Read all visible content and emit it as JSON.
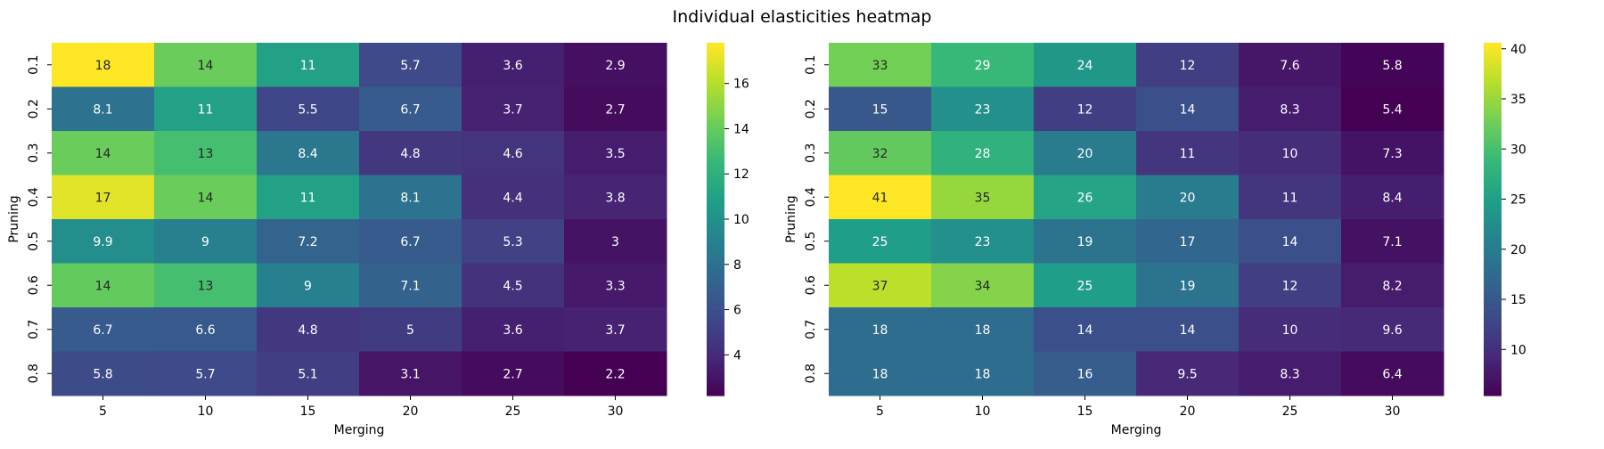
{
  "figure": {
    "title": "Individual elasticities heatmap"
  },
  "chart_data": [
    {
      "type": "heatmap",
      "colormap": "viridis",
      "xlabel": "Merging",
      "ylabel": "Pruning",
      "x": [
        "5",
        "10",
        "15",
        "20",
        "25",
        "30"
      ],
      "y": [
        "0.1",
        "0.2",
        "0.3",
        "0.4",
        "0.5",
        "0.6",
        "0.7",
        "0.8"
      ],
      "values": [
        [
          17.8,
          14.2,
          11.1,
          5.7,
          3.6,
          2.9
        ],
        [
          8.1,
          11.1,
          5.5,
          6.7,
          3.7,
          2.7
        ],
        [
          14.2,
          13.1,
          8.4,
          4.8,
          4.6,
          3.5
        ],
        [
          17.1,
          14.2,
          11.1,
          8.1,
          4.4,
          3.8
        ],
        [
          9.9,
          9.0,
          7.2,
          6.7,
          5.3,
          3.0
        ],
        [
          14.0,
          13.1,
          9.0,
          7.1,
          4.5,
          3.3
        ],
        [
          6.7,
          6.6,
          4.8,
          5.0,
          3.6,
          3.7
        ],
        [
          5.8,
          5.7,
          5.1,
          3.1,
          2.7,
          2.2
        ]
      ],
      "labels": [
        [
          "18",
          "14",
          "11",
          "5.7",
          "3.6",
          "2.9"
        ],
        [
          "8.1",
          "11",
          "5.5",
          "6.7",
          "3.7",
          "2.7"
        ],
        [
          "14",
          "13",
          "8.4",
          "4.8",
          "4.6",
          "3.5"
        ],
        [
          "17",
          "14",
          "11",
          "8.1",
          "4.4",
          "3.8"
        ],
        [
          "9.9",
          "9",
          "7.2",
          "6.7",
          "5.3",
          "3"
        ],
        [
          "14",
          "13",
          "9",
          "7.1",
          "4.5",
          "3.3"
        ],
        [
          "6.7",
          "6.6",
          "4.8",
          "5",
          "3.6",
          "3.7"
        ],
        [
          "5.8",
          "5.7",
          "5.1",
          "3.1",
          "2.7",
          "2.2"
        ]
      ],
      "colorbar": {
        "min": 2.2,
        "max": 17.8,
        "ticks": [
          4,
          6,
          8,
          10,
          12,
          14,
          16
        ]
      }
    },
    {
      "type": "heatmap",
      "colormap": "viridis",
      "xlabel": "Merging",
      "ylabel": "Pruning",
      "x": [
        "5",
        "10",
        "15",
        "20",
        "25",
        "30"
      ],
      "y": [
        "0.1",
        "0.2",
        "0.3",
        "0.4",
        "0.5",
        "0.6",
        "0.7",
        "0.8"
      ],
      "values": [
        [
          33,
          29,
          24,
          12,
          7.6,
          5.8
        ],
        [
          15,
          23,
          12,
          14,
          8.3,
          5.4
        ],
        [
          32,
          28,
          20,
          11,
          10,
          7.3
        ],
        [
          40.6,
          35,
          26,
          20,
          11,
          8.4
        ],
        [
          25,
          23,
          19,
          17,
          14,
          7.1
        ],
        [
          37,
          34,
          25,
          19,
          12,
          8.2
        ],
        [
          18,
          18,
          14,
          14,
          10,
          9.6
        ],
        [
          18,
          18,
          16,
          9.5,
          8.3,
          6.4
        ]
      ],
      "labels": [
        [
          "33",
          "29",
          "24",
          "12",
          "7.6",
          "5.8"
        ],
        [
          "15",
          "23",
          "12",
          "14",
          "8.3",
          "5.4"
        ],
        [
          "32",
          "28",
          "20",
          "11",
          "10",
          "7.3"
        ],
        [
          "41",
          "35",
          "26",
          "20",
          "11",
          "8.4"
        ],
        [
          "25",
          "23",
          "19",
          "17",
          "14",
          "7.1"
        ],
        [
          "37",
          "34",
          "25",
          "19",
          "12",
          "8.2"
        ],
        [
          "18",
          "18",
          "14",
          "14",
          "10",
          "9.6"
        ],
        [
          "18",
          "18",
          "16",
          "9.5",
          "8.3",
          "6.4"
        ]
      ],
      "colorbar": {
        "min": 5.4,
        "max": 40.6,
        "ticks": [
          10,
          15,
          20,
          25,
          30,
          35,
          40
        ]
      }
    }
  ]
}
